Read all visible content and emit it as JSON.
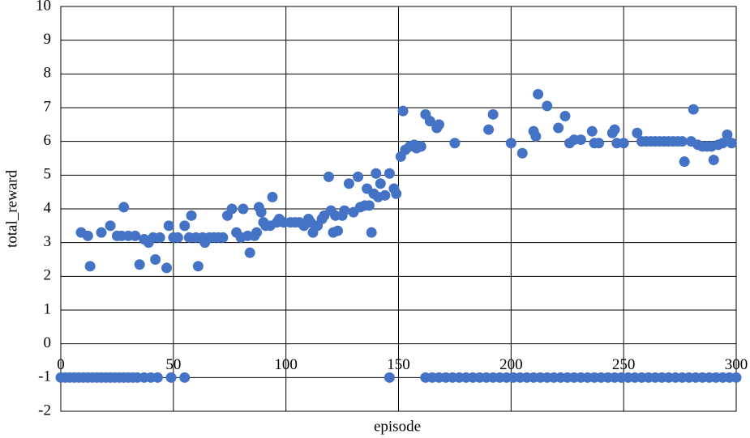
{
  "chart_data": {
    "type": "scatter",
    "x_label": "episode",
    "y_label": "total_reward",
    "color": "#4472c4",
    "grid": true,
    "xlim": [
      0,
      300
    ],
    "xticks": [
      0,
      50,
      100,
      150,
      200,
      250,
      300
    ],
    "ylim": [
      -2,
      10
    ],
    "yticks": [
      -2,
      -1,
      0,
      1,
      2,
      3,
      4,
      5,
      6,
      7,
      8,
      9,
      10
    ],
    "x": [
      0,
      2,
      4,
      6,
      8,
      10,
      12,
      14,
      16,
      18,
      20,
      22,
      24,
      26,
      28,
      30,
      32,
      34,
      37,
      40,
      43,
      49,
      55,
      146,
      162,
      165,
      168,
      171,
      174,
      177,
      180,
      183,
      186,
      189,
      192,
      195,
      198,
      201,
      204,
      207,
      210,
      213,
      216,
      219,
      222,
      225,
      228,
      231,
      234,
      237,
      240,
      243,
      246,
      249,
      252,
      255,
      258,
      261,
      264,
      267,
      270,
      273,
      276,
      279,
      282,
      285,
      288,
      291,
      294,
      297,
      300,
      9,
      12,
      13,
      18,
      22,
      25,
      27,
      28,
      30,
      33,
      35,
      37,
      39,
      41,
      42,
      44,
      47,
      48,
      50,
      52,
      55,
      57,
      58,
      60,
      61,
      63,
      64,
      66,
      68,
      70,
      72,
      74,
      76,
      78,
      80,
      81,
      83,
      84,
      86,
      87,
      88,
      89,
      90,
      91,
      93,
      94,
      96,
      97,
      99,
      102,
      104,
      106,
      108,
      110,
      111,
      112,
      114,
      116,
      117,
      119,
      120,
      121,
      122,
      123,
      125,
      126,
      128,
      130,
      132,
      133,
      135,
      136,
      137,
      138,
      139,
      140,
      141,
      142,
      144,
      146,
      148,
      149,
      151,
      152,
      153,
      155,
      157,
      158,
      160,
      162,
      164,
      167,
      168,
      175,
      190,
      192,
      200,
      205,
      210,
      211,
      212,
      216,
      221,
      224,
      226,
      228,
      231,
      236,
      237,
      239,
      245,
      246,
      247,
      250,
      256,
      258,
      260,
      262,
      264,
      266,
      268,
      270,
      272,
      274,
      276,
      277,
      280,
      281,
      283,
      285,
      287,
      289,
      290,
      292,
      294,
      296,
      298
    ],
    "values": [
      -1,
      -1,
      -1,
      -1,
      -1,
      -1,
      -1,
      -1,
      -1,
      -1,
      -1,
      -1,
      -1,
      -1,
      -1,
      -1,
      -1,
      -1,
      -1,
      -1,
      -1,
      -1,
      -1,
      -1,
      -1,
      -1,
      -1,
      -1,
      -1,
      -1,
      -1,
      -1,
      -1,
      -1,
      -1,
      -1,
      -1,
      -1,
      -1,
      -1,
      -1,
      -1,
      -1,
      -1,
      -1,
      -1,
      -1,
      -1,
      -1,
      -1,
      -1,
      -1,
      -1,
      -1,
      -1,
      -1,
      -1,
      -1,
      -1,
      -1,
      -1,
      -1,
      -1,
      -1,
      -1,
      -1,
      -1,
      -1,
      -1,
      -1,
      -1,
      3.3,
      3.2,
      2.3,
      3.3,
      3.5,
      3.2,
      3.2,
      4.05,
      3.2,
      3.2,
      2.35,
      3.1,
      3.0,
      3.15,
      2.5,
      3.15,
      2.25,
      3.5,
      3.15,
      3.15,
      3.5,
      3.15,
      3.8,
      3.15,
      2.3,
      3.15,
      3.0,
      3.15,
      3.15,
      3.15,
      3.15,
      3.8,
      4.0,
      3.3,
      3.15,
      4.0,
      3.2,
      2.7,
      3.2,
      3.3,
      4.05,
      3.9,
      3.6,
      3.5,
      3.5,
      4.35,
      3.6,
      3.7,
      3.6,
      3.6,
      3.6,
      3.6,
      3.5,
      3.7,
      3.6,
      3.3,
      3.5,
      3.7,
      3.8,
      4.95,
      3.95,
      3.3,
      3.8,
      3.35,
      3.8,
      3.95,
      4.75,
      3.9,
      4.95,
      4.05,
      4.1,
      4.6,
      4.1,
      3.3,
      4.45,
      5.05,
      4.35,
      4.75,
      4.4,
      5.05,
      4.6,
      4.45,
      5.55,
      6.9,
      5.75,
      5.85,
      5.9,
      5.8,
      5.85,
      6.8,
      6.6,
      6.4,
      6.5,
      5.95,
      6.35,
      6.8,
      5.95,
      5.65,
      6.3,
      6.15,
      7.4,
      7.05,
      6.4,
      6.75,
      5.95,
      6.05,
      6.05,
      6.3,
      5.95,
      5.95,
      6.25,
      6.35,
      5.95,
      5.95,
      6.25,
      6,
      6,
      6,
      6,
      6,
      6,
      6,
      6,
      6,
      6,
      5.4,
      6,
      6.95,
      5.9,
      5.85,
      5.85,
      5.85,
      5.45,
      5.9,
      5.95,
      6.2,
      5.95
    ]
  }
}
